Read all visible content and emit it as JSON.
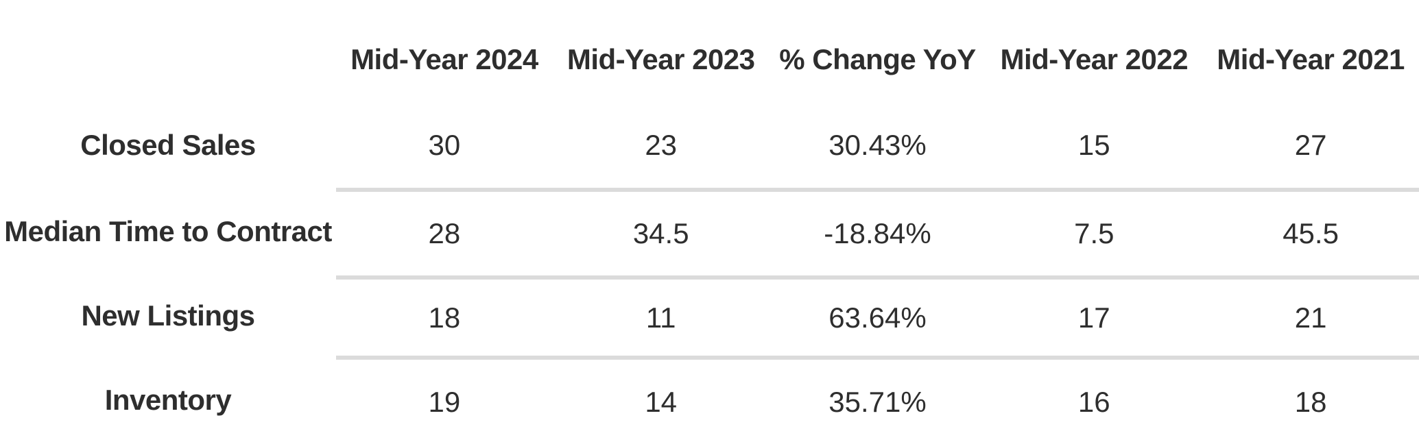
{
  "page": {
    "background": "#ffffff"
  },
  "colors": {
    "text": "#2e2e2e",
    "divider": "#dbdbdb",
    "background": "#ffffff"
  },
  "chart_data": {
    "type": "table",
    "title": "",
    "columns": [
      "Mid-Year 2024",
      "Mid-Year 2023",
      "% Change YoY",
      "Mid-Year 2022",
      "Mid-Year 2021"
    ],
    "rows": [
      {
        "label": "Closed Sales",
        "values": [
          30,
          23,
          "30.43%",
          15,
          27
        ]
      },
      {
        "label": "Median Time to Contract",
        "values": [
          28,
          34.5,
          "-18.84%",
          7.5,
          45.5
        ]
      },
      {
        "label": "New Listings",
        "values": [
          18,
          11,
          "63.64%",
          17,
          21
        ]
      },
      {
        "label": "Inventory",
        "values": [
          19,
          14,
          "35.71%",
          16,
          18
        ]
      }
    ],
    "layout": {
      "grid": "horizontal-dividers-between-data-rows-only",
      "dividers_span": "data-columns-only",
      "header_style": "bold",
      "row_label_style": "bold"
    }
  }
}
